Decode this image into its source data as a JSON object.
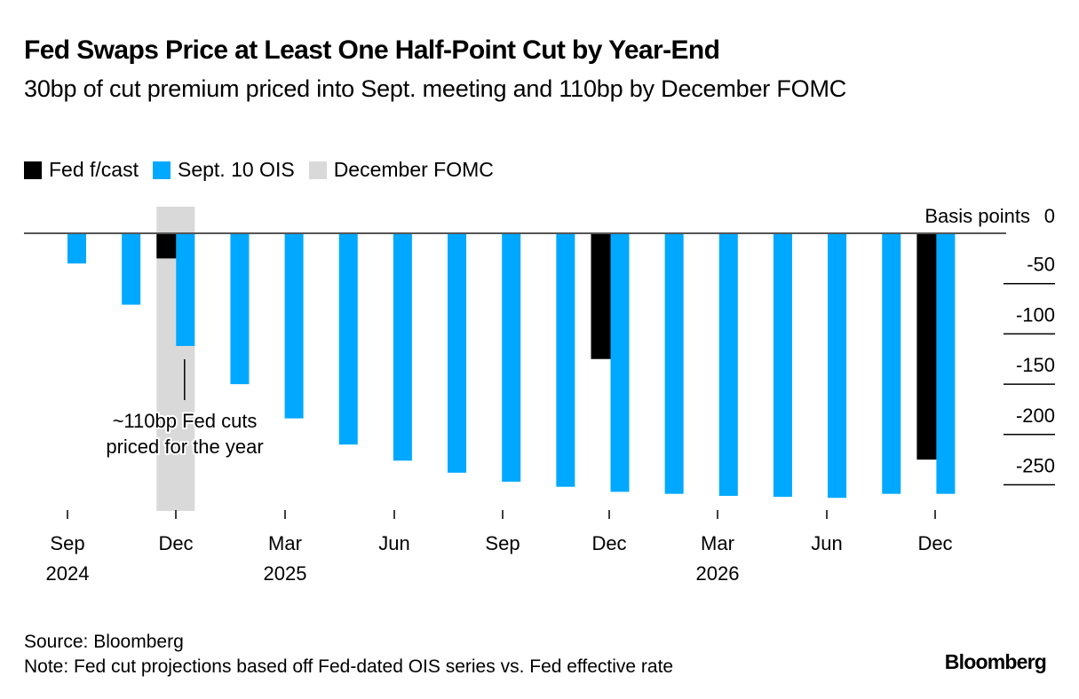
{
  "header": {
    "title": "Fed Swaps Price at Least One Half-Point Cut by Year-End",
    "subtitle": "30bp of cut premium priced into Sept. meeting and 110bp by December FOMC"
  },
  "legend": [
    {
      "label": "Fed f/cast",
      "color": "#000000"
    },
    {
      "label": "Sept. 10 OIS",
      "color": "#00A8FF"
    },
    {
      "label": "December FOMC",
      "color": "#D9D9D9"
    }
  ],
  "footer": {
    "source": "Source: Bloomberg",
    "note": "Note: Fed cut projections based off Fed-dated OIS series vs. Fed effective rate",
    "logo": "Bloomberg"
  },
  "chart_data": {
    "type": "bar",
    "title": "Fed Swaps Price at Least One Half-Point Cut by Year-End",
    "subtitle": "30bp of cut premium priced into Sept. meeting and 110bp by December FOMC",
    "ylabel": "Basis points",
    "xlabel": "",
    "ylim": [
      -275,
      0
    ],
    "yticks": [
      0,
      -50,
      -100,
      -150,
      -200,
      -250
    ],
    "y_axis_position": "right",
    "grid": false,
    "legend_position": "top-left",
    "categories": [
      "Sep 2024",
      "Nov 2024",
      "Dec 2024",
      "Jan 2025",
      "Mar 2025",
      "May 2025",
      "Jun 2025",
      "Jul 2025",
      "Sep 2025",
      "Oct 2025",
      "Dec 2025",
      "Jan 2026",
      "Mar 2026",
      "Apr 2026",
      "Jun 2026",
      "Jul 2026",
      "Dec 2026"
    ],
    "series": [
      {
        "name": "Fed f/cast",
        "color": "#000000",
        "values": [
          null,
          null,
          -25,
          null,
          null,
          null,
          null,
          null,
          null,
          null,
          -125,
          null,
          null,
          null,
          null,
          null,
          -225
        ]
      },
      {
        "name": "Sept. 10 OIS",
        "color": "#00A8FF",
        "values": [
          -30,
          -71,
          -112,
          -150,
          -184,
          -210,
          -226,
          -238,
          -247,
          -252,
          -257,
          -259,
          -261,
          -262,
          -263,
          -259,
          -259
        ]
      }
    ],
    "highlight": {
      "label": "December FOMC",
      "category": "Dec 2024",
      "color": "#D9D9D9"
    },
    "x_tick_labels": [
      {
        "month": "Sep",
        "year": "2024",
        "at": "Sep 2024"
      },
      {
        "month": "Dec",
        "year": "",
        "at": "Dec 2024"
      },
      {
        "month": "Mar",
        "year": "2025",
        "at": "Mar 2025"
      },
      {
        "month": "Jun",
        "year": "",
        "at": "Jun 2025"
      },
      {
        "month": "Sep",
        "year": "",
        "at": "Sep 2025"
      },
      {
        "month": "Dec",
        "year": "",
        "at": "Dec 2025"
      },
      {
        "month": "Mar",
        "year": "2026",
        "at": "Mar 2026"
      },
      {
        "month": "Jun",
        "year": "",
        "at": "Jun 2026"
      },
      {
        "month": "Dec",
        "year": "",
        "at": "Dec 2026"
      }
    ],
    "annotation": {
      "lines": [
        "~110bp Fed cuts",
        "priced for the year"
      ],
      "at": "Dec 2024"
    }
  }
}
